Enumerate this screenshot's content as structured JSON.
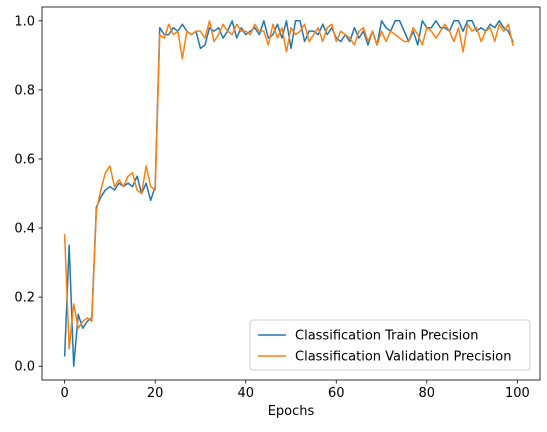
{
  "chart_data": {
    "type": "line",
    "title": "",
    "xlabel": "Epochs",
    "ylabel": "",
    "xlim": [
      -5,
      105
    ],
    "ylim": [
      -0.04,
      1.04
    ],
    "xticks": [
      0,
      20,
      40,
      60,
      80,
      100
    ],
    "yticks": [
      0.0,
      0.2,
      0.4,
      0.6,
      0.8,
      1.0
    ],
    "ytick_labels": [
      "0.0",
      "0.2",
      "0.4",
      "0.6",
      "0.8",
      "1.0"
    ],
    "grid": false,
    "legend_position": "lower right",
    "x": [
      0,
      1,
      2,
      3,
      4,
      5,
      6,
      7,
      8,
      9,
      10,
      11,
      12,
      13,
      14,
      15,
      16,
      17,
      18,
      19,
      20,
      21,
      22,
      23,
      24,
      25,
      26,
      27,
      28,
      29,
      30,
      31,
      32,
      33,
      34,
      35,
      36,
      37,
      38,
      39,
      40,
      41,
      42,
      43,
      44,
      45,
      46,
      47,
      48,
      49,
      50,
      51,
      52,
      53,
      54,
      55,
      56,
      57,
      58,
      59,
      60,
      61,
      62,
      63,
      64,
      65,
      66,
      67,
      68,
      69,
      70,
      71,
      72,
      73,
      74,
      75,
      76,
      77,
      78,
      79,
      80,
      81,
      82,
      83,
      84,
      85,
      86,
      87,
      88,
      89,
      90,
      91,
      92,
      93,
      94,
      95,
      96,
      97,
      98,
      99
    ],
    "series": [
      {
        "name": "Classification Train Precision",
        "color": "#1f77b4",
        "values": [
          0.03,
          0.35,
          0.0,
          0.15,
          0.11,
          0.13,
          0.14,
          0.46,
          0.49,
          0.51,
          0.52,
          0.51,
          0.53,
          0.52,
          0.53,
          0.52,
          0.55,
          0.5,
          0.53,
          0.48,
          0.52,
          0.98,
          0.96,
          0.96,
          0.98,
          0.97,
          0.99,
          0.97,
          0.96,
          0.97,
          0.92,
          0.93,
          0.98,
          0.97,
          0.98,
          0.95,
          0.97,
          1.0,
          0.95,
          0.98,
          0.96,
          0.97,
          0.98,
          0.96,
          1.0,
          0.95,
          0.96,
          0.99,
          0.95,
          1.0,
          0.92,
          1.0,
          1.0,
          0.94,
          0.97,
          0.97,
          0.96,
          0.99,
          0.96,
          0.98,
          0.95,
          0.94,
          0.96,
          0.94,
          0.98,
          0.95,
          0.97,
          0.93,
          0.97,
          0.93,
          1.0,
          0.98,
          0.97,
          1.0,
          1.0,
          0.97,
          0.94,
          0.97,
          0.93,
          1.0,
          0.98,
          0.98,
          1.0,
          0.98,
          0.98,
          0.97,
          1.0,
          1.0,
          0.97,
          1.0,
          1.0,
          0.97,
          0.98,
          0.97,
          0.99,
          0.98,
          1.0,
          0.98,
          0.97,
          0.94
        ]
      },
      {
        "name": "Classification Validation Precision",
        "color": "#ff7f0e",
        "values": [
          0.38,
          0.05,
          0.18,
          0.11,
          0.13,
          0.14,
          0.13,
          0.45,
          0.51,
          0.56,
          0.58,
          0.52,
          0.54,
          0.52,
          0.55,
          0.56,
          0.51,
          0.5,
          0.58,
          0.52,
          0.51,
          0.96,
          0.95,
          0.99,
          0.96,
          0.97,
          0.89,
          0.97,
          0.96,
          0.97,
          0.97,
          0.95,
          1.0,
          0.94,
          0.96,
          0.99,
          0.97,
          0.96,
          0.99,
          0.97,
          0.97,
          0.96,
          0.99,
          0.97,
          0.97,
          0.93,
          0.99,
          0.95,
          0.98,
          0.91,
          0.98,
          0.96,
          0.97,
          0.99,
          0.94,
          0.96,
          0.98,
          0.94,
          0.98,
          0.99,
          0.94,
          0.97,
          0.96,
          0.95,
          0.93,
          0.97,
          0.98,
          0.94,
          0.97,
          0.93,
          0.97,
          0.94,
          0.97,
          0.96,
          0.95,
          0.94,
          0.94,
          0.98,
          0.96,
          0.93,
          0.98,
          0.97,
          0.95,
          0.97,
          0.99,
          0.97,
          0.94,
          0.98,
          0.91,
          0.99,
          0.97,
          0.98,
          0.94,
          0.97,
          0.98,
          0.94,
          0.99,
          0.97,
          0.99,
          0.93
        ]
      }
    ]
  }
}
